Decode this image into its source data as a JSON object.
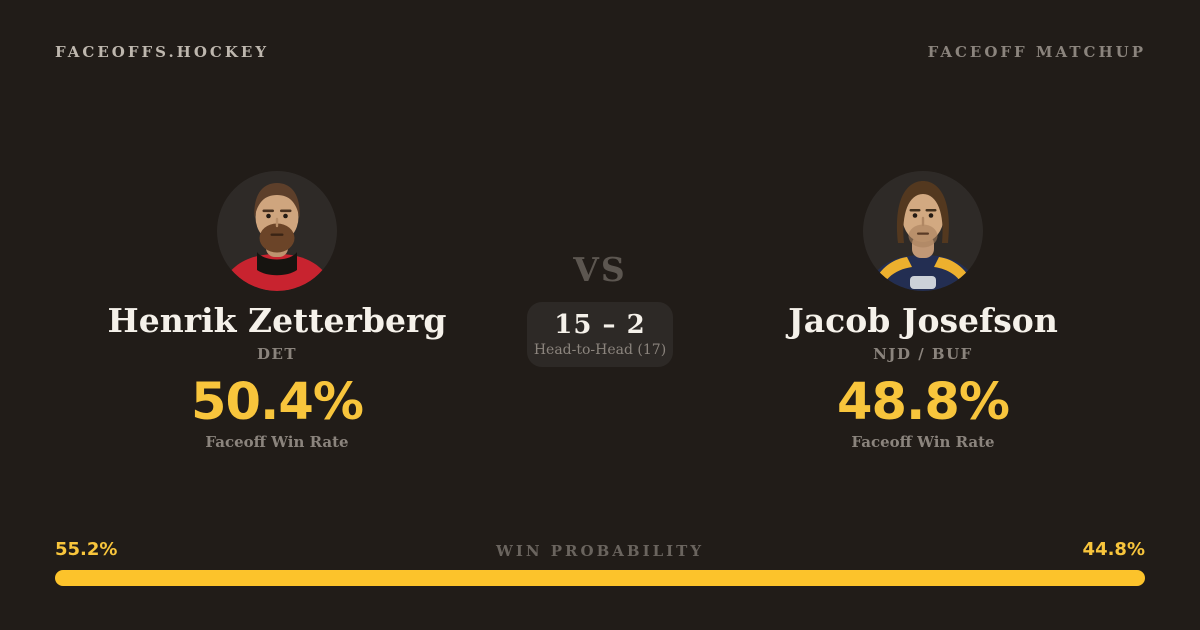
{
  "header": {
    "brand": "FACEOFFS.HOCKEY",
    "tagline": "FACEOFF MATCHUP"
  },
  "players": [
    {
      "name": "Henrik Zetterberg",
      "team": "DET",
      "win_rate": "50.4%",
      "win_rate_label": "Faceoff Win Rate",
      "photo": "zetterberg-headshot",
      "jersey_color": "#c8232f"
    },
    {
      "name": "Jacob Josefson",
      "team": "NJD / BUF",
      "win_rate": "48.8%",
      "win_rate_label": "Faceoff Win Rate",
      "photo": "josefson-headshot",
      "jersey_color": "#232e52"
    }
  ],
  "matchup": {
    "vs_label": "VS",
    "head_to_head_score": "15 – 2",
    "head_to_head_label": "Head-to-Head (17)"
  },
  "win_probability": {
    "label": "WIN PROBABILITY",
    "left_pct": "55.2%",
    "right_pct": "44.8%",
    "left_value": 55.2,
    "right_value": 44.8
  },
  "colors": {
    "background": "#211c18",
    "accent_gold": "#f8c53c",
    "bar_gold": "#fcc32b",
    "panel": "#2d2926",
    "text_light": "#f5f1ea",
    "text_muted": "#8b847d"
  }
}
